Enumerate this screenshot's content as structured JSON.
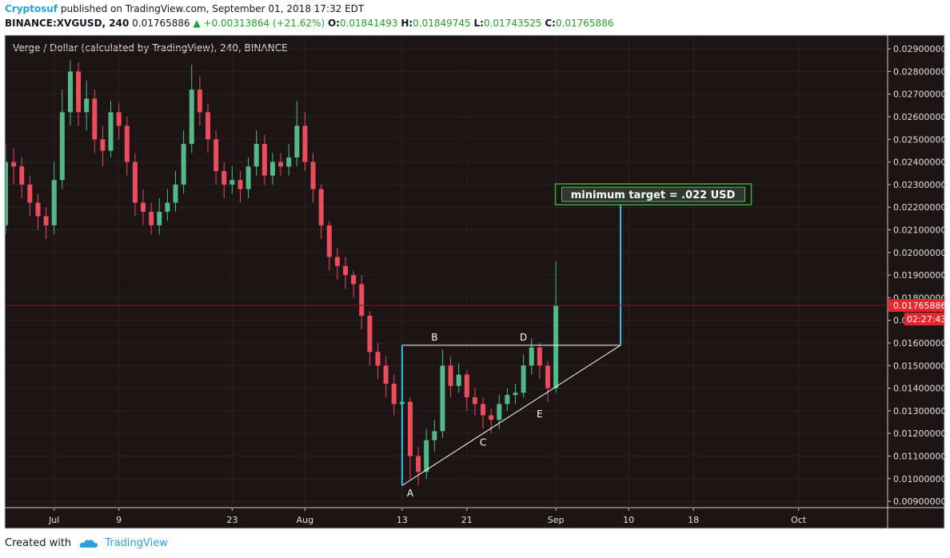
{
  "header": {
    "author": "Cryptosuf",
    "published": "published on TradingView.com, September 01, 2018 17:32 EDT",
    "symbol": "BINANCE:XVGUSD, 240",
    "last": "0.01765886",
    "change": "▲ +0.00313864 (+21.62%)",
    "ohlc": [
      {
        "label": "O:",
        "value": "0.01841493"
      },
      {
        "label": "H:",
        "value": "0.01849745"
      },
      {
        "label": "L:",
        "value": "0.01743525"
      },
      {
        "label": "C:",
        "value": "0.01765886"
      }
    ]
  },
  "footer": {
    "created": "Created with",
    "brand": "TradingView"
  },
  "chart_data": {
    "type": "candlestick",
    "title": "Verge / Dollar (calculated by TradingView), 240, BINANCE",
    "x": [
      "06-25",
      "06-26",
      "06-27",
      "06-28",
      "06-29",
      "06-30",
      "07-01",
      "07-02",
      "07-03",
      "07-04",
      "07-05",
      "07-06",
      "07-07",
      "07-08",
      "07-09",
      "07-10",
      "07-11",
      "07-12",
      "07-13",
      "07-14",
      "07-15",
      "07-16",
      "07-17",
      "07-18",
      "07-19",
      "07-20",
      "07-21",
      "07-22",
      "07-23",
      "07-24",
      "07-25",
      "07-26",
      "07-27",
      "07-28",
      "07-29",
      "07-30",
      "07-31",
      "08-01",
      "08-02",
      "08-03",
      "08-04",
      "08-05",
      "08-06",
      "08-07",
      "08-08",
      "08-09",
      "08-10",
      "08-11",
      "08-12",
      "08-13",
      "08-14",
      "08-15",
      "08-16",
      "08-17",
      "08-18",
      "08-19",
      "08-20",
      "08-21",
      "08-22",
      "08-23",
      "08-24",
      "08-25",
      "08-26",
      "08-27",
      "08-28",
      "08-29",
      "08-30",
      "08-31",
      "09-01"
    ],
    "open": [
      0.0212,
      0.024,
      0.0238,
      0.023,
      0.0222,
      0.0216,
      0.0212,
      0.0232,
      0.0262,
      0.028,
      0.0262,
      0.0268,
      0.025,
      0.0245,
      0.0262,
      0.0256,
      0.024,
      0.0222,
      0.0218,
      0.0212,
      0.0218,
      0.0222,
      0.023,
      0.0248,
      0.0272,
      0.0262,
      0.025,
      0.0236,
      0.023,
      0.0232,
      0.0228,
      0.0238,
      0.0248,
      0.0234,
      0.024,
      0.0238,
      0.0242,
      0.0256,
      0.024,
      0.0228,
      0.0212,
      0.0198,
      0.0194,
      0.019,
      0.0186,
      0.0172,
      0.0156,
      0.015,
      0.0142,
      0.0133,
      0.0134,
      0.011,
      0.0103,
      0.0117,
      0.0121,
      0.015,
      0.0141,
      0.0146,
      0.0136,
      0.0133,
      0.0128,
      0.0126,
      0.0133,
      0.0137,
      0.0138,
      0.015,
      0.0158,
      0.015,
      0.014
    ],
    "high": [
      0.0248,
      0.0246,
      0.0242,
      0.0234,
      0.0226,
      0.022,
      0.024,
      0.0272,
      0.0285,
      0.0284,
      0.0276,
      0.0272,
      0.0256,
      0.0267,
      0.0266,
      0.026,
      0.0244,
      0.0228,
      0.0222,
      0.0224,
      0.0228,
      0.0236,
      0.0254,
      0.0283,
      0.0278,
      0.0266,
      0.0254,
      0.024,
      0.0238,
      0.0236,
      0.0242,
      0.0254,
      0.0252,
      0.0244,
      0.0244,
      0.0248,
      0.0267,
      0.0262,
      0.0244,
      0.023,
      0.0214,
      0.0202,
      0.0198,
      0.0192,
      0.019,
      0.0174,
      0.016,
      0.0154,
      0.0146,
      0.014,
      0.0136,
      0.0114,
      0.0122,
      0.0126,
      0.0157,
      0.0154,
      0.0151,
      0.0148,
      0.014,
      0.0136,
      0.0131,
      0.0137,
      0.014,
      0.0142,
      0.0155,
      0.0162,
      0.016,
      0.0152,
      0.0196
    ],
    "low": [
      0.0208,
      0.023,
      0.0224,
      0.0216,
      0.021,
      0.0206,
      0.0208,
      0.0228,
      0.0256,
      0.0256,
      0.0254,
      0.0244,
      0.0238,
      0.0242,
      0.025,
      0.0234,
      0.0216,
      0.0212,
      0.0208,
      0.0208,
      0.0214,
      0.0218,
      0.0226,
      0.0244,
      0.0256,
      0.0244,
      0.023,
      0.0224,
      0.0226,
      0.0222,
      0.0224,
      0.0234,
      0.023,
      0.023,
      0.0234,
      0.0234,
      0.0238,
      0.0236,
      0.0222,
      0.0206,
      0.0192,
      0.0188,
      0.0184,
      0.018,
      0.0166,
      0.015,
      0.0144,
      0.0136,
      0.0128,
      0.0128,
      0.01,
      0.0097,
      0.01,
      0.0112,
      0.0118,
      0.0136,
      0.0138,
      0.013,
      0.0128,
      0.0122,
      0.012,
      0.0122,
      0.013,
      0.0133,
      0.0136,
      0.0146,
      0.0144,
      0.0134,
      0.0138
    ],
    "close": [
      0.024,
      0.0238,
      0.023,
      0.0222,
      0.0216,
      0.0212,
      0.0232,
      0.0262,
      0.028,
      0.0262,
      0.0268,
      0.025,
      0.0245,
      0.0262,
      0.0256,
      0.024,
      0.0222,
      0.0218,
      0.0212,
      0.0218,
      0.0222,
      0.023,
      0.0248,
      0.0272,
      0.0262,
      0.025,
      0.0236,
      0.023,
      0.0232,
      0.0228,
      0.0238,
      0.0248,
      0.0234,
      0.024,
      0.0238,
      0.0242,
      0.0256,
      0.024,
      0.0228,
      0.0212,
      0.0198,
      0.0194,
      0.019,
      0.0186,
      0.0172,
      0.0156,
      0.015,
      0.0142,
      0.0133,
      0.0134,
      0.011,
      0.0103,
      0.0117,
      0.0121,
      0.015,
      0.0141,
      0.0146,
      0.0136,
      0.0133,
      0.0128,
      0.0126,
      0.0133,
      0.0137,
      0.0138,
      0.015,
      0.0158,
      0.015,
      0.014,
      0.01765886
    ],
    "up_color": "#53b987",
    "down_color": "#eb4d5c",
    "xlim": [
      "06-25",
      "10-12"
    ],
    "xticks": [
      {
        "value": "07-01",
        "label": "Jul"
      },
      {
        "value": "07-09",
        "label": "9"
      },
      {
        "value": "07-23",
        "label": "23"
      },
      {
        "value": "08-01",
        "label": "Aug"
      },
      {
        "value": "08-13",
        "label": "13"
      },
      {
        "value": "08-21",
        "label": "21"
      },
      {
        "value": "09-01",
        "label": "Sep"
      },
      {
        "value": "09-10",
        "label": "10"
      },
      {
        "value": "09-18",
        "label": "18"
      },
      {
        "value": "10-01",
        "label": "Oct"
      }
    ],
    "ylim": [
      0.00872,
      0.02957
    ],
    "yticks": [
      {
        "value": 0.009,
        "label": "0.00900000"
      },
      {
        "value": 0.01,
        "label": "0.01000000"
      },
      {
        "value": 0.011,
        "label": "0.01100000"
      },
      {
        "value": 0.012,
        "label": "0.01200000"
      },
      {
        "value": 0.013,
        "label": "0.01300000"
      },
      {
        "value": 0.014,
        "label": "0.01400000"
      },
      {
        "value": 0.015,
        "label": "0.01500000"
      },
      {
        "value": 0.016,
        "label": "0.01600000"
      },
      {
        "value": 0.017,
        "label": "0.01700000"
      },
      {
        "value": 0.018,
        "label": "0.01800000"
      },
      {
        "value": 0.019,
        "label": "0.01900000"
      },
      {
        "value": 0.02,
        "label": "0.02000000"
      },
      {
        "value": 0.021,
        "label": "0.02100000"
      },
      {
        "value": 0.022,
        "label": "0.02200000"
      },
      {
        "value": 0.023,
        "label": "0.02300000"
      },
      {
        "value": 0.024,
        "label": "0.02400000"
      },
      {
        "value": 0.025,
        "label": "0.02500000"
      },
      {
        "value": 0.026,
        "label": "0.02600000"
      },
      {
        "value": 0.027,
        "label": "0.02700000"
      },
      {
        "value": 0.028,
        "label": "0.02800000"
      },
      {
        "value": 0.029,
        "label": "0.02900000"
      }
    ],
    "grid": true,
    "price_line": {
      "value": 0.01765886,
      "label": "0.01765886",
      "countdown": "02:27:43",
      "color": "#e8262e"
    },
    "lines": [
      {
        "color": "#ffffff",
        "x": [
          "08-13",
          "09-09"
        ],
        "y": [
          0.0159,
          0.0159
        ]
      },
      {
        "color": "#ffffff",
        "x": [
          "08-13",
          "09-09"
        ],
        "y": [
          0.0097,
          0.0159
        ]
      },
      {
        "color": "#2ec4e6",
        "x": [
          "08-13",
          "08-13"
        ],
        "y": [
          0.0097,
          0.0159
        ]
      },
      {
        "color": "#2ec4e6",
        "x": [
          "09-09",
          "09-09"
        ],
        "y": [
          0.0159,
          0.0222
        ]
      }
    ],
    "annotations": [
      {
        "text": "A",
        "x": "08-14",
        "y": 0.00935
      },
      {
        "text": "B",
        "x": "08-17",
        "y": 0.01625
      },
      {
        "text": "C",
        "x": "08-23",
        "y": 0.0116
      },
      {
        "text": "D",
        "x": "08-28",
        "y": 0.01625
      },
      {
        "text": "E",
        "x": "08-30",
        "y": 0.01285
      }
    ],
    "target": {
      "text": "minimum target = .022 USD",
      "x": "09-13",
      "y": 0.02257,
      "color": "#2fb52f"
    }
  }
}
